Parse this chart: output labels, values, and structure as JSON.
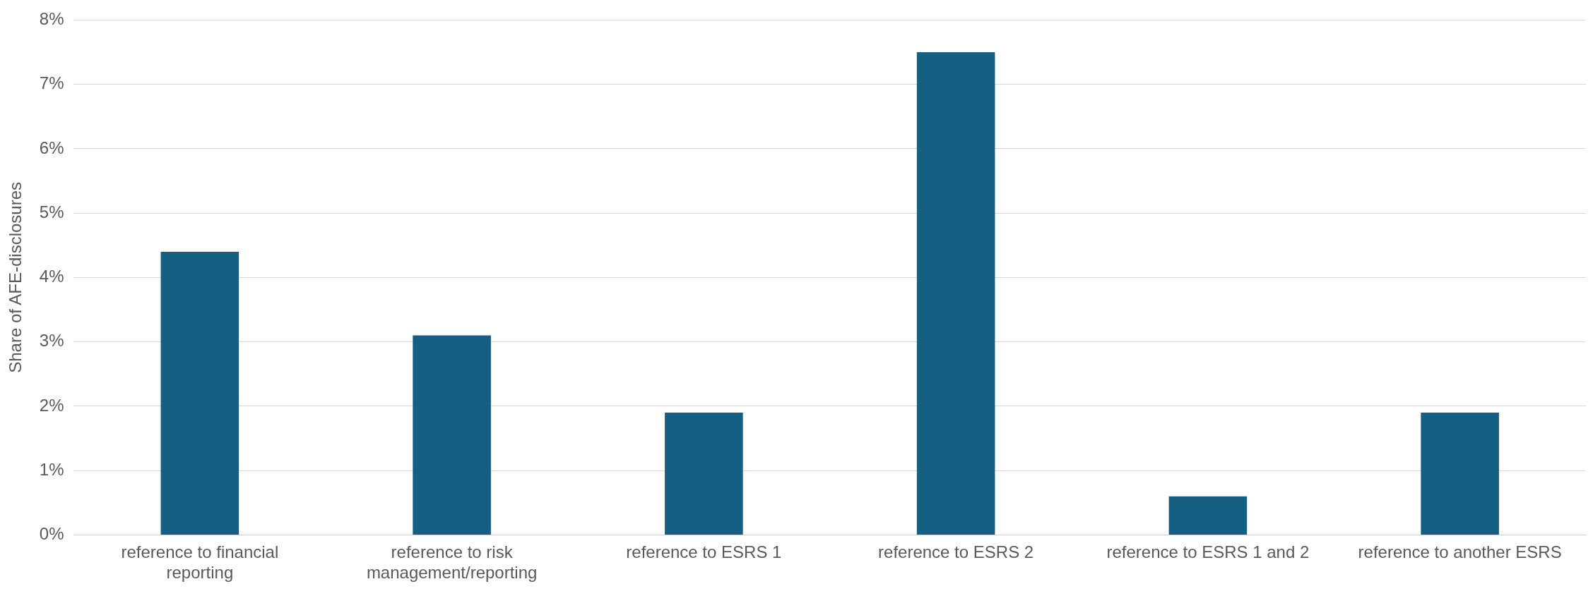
{
  "chart_data": {
    "type": "bar",
    "ylabel": "Share of AFE-disclosures",
    "categories": [
      "reference to financial reporting",
      "reference to risk management/reporting",
      "reference to ESRS 1",
      "reference to ESRS 2",
      "reference to ESRS 1 and 2",
      "reference to another ESRS"
    ],
    "series": [
      {
        "color": "#156082",
        "values": [
          4.4,
          3.1,
          1.9,
          7.5,
          0.6,
          1.9
        ]
      }
    ],
    "ylim": [
      0,
      8
    ],
    "yticks": [
      {
        "value": 0,
        "label": "0%"
      },
      {
        "value": 1,
        "label": "1%"
      },
      {
        "value": 2,
        "label": "2%"
      },
      {
        "value": 3,
        "label": "3%"
      },
      {
        "value": 4,
        "label": "4%"
      },
      {
        "value": 5,
        "label": "5%"
      },
      {
        "value": 6,
        "label": "6%"
      },
      {
        "value": 7,
        "label": "7%"
      },
      {
        "value": 8,
        "label": "8%"
      }
    ],
    "grid": "y",
    "legend": false
  }
}
